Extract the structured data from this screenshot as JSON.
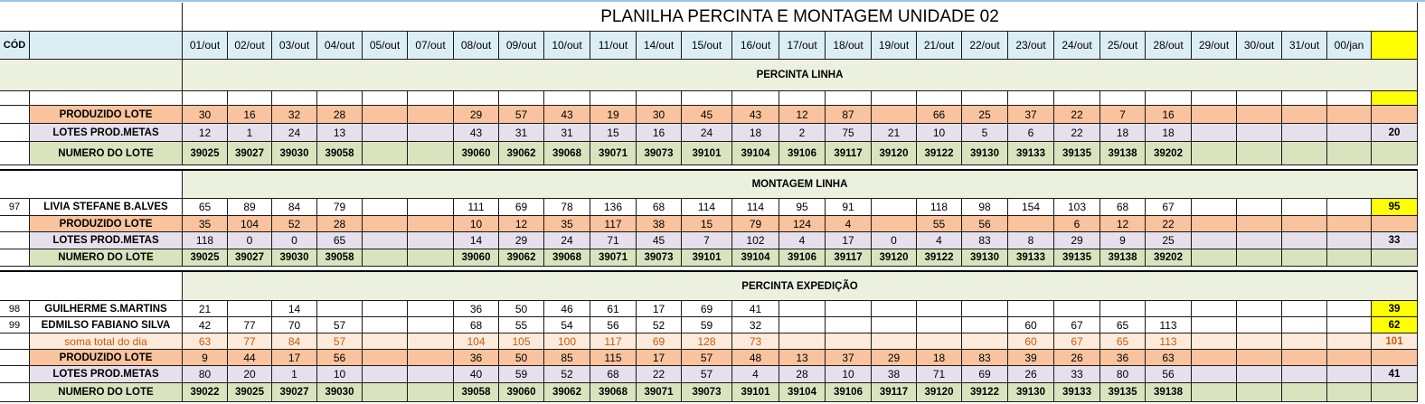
{
  "title": "PLANILHA PERCINTA E MONTAGEM UNIDADE 02",
  "code_header": "CÓD",
  "dates": [
    "01/out",
    "02/out",
    "03/out",
    "04/out",
    "05/out",
    "07/out",
    "08/out",
    "09/out",
    "10/out",
    "11/out",
    "14/out",
    "15/out",
    "16/out",
    "17/out",
    "18/out",
    "19/out",
    "21/out",
    "22/out",
    "23/out",
    "24/out",
    "25/out",
    "28/out",
    "29/out",
    "30/out",
    "31/out",
    "00/jan",
    ""
  ],
  "colors": {
    "header_blue": "#dbeef5",
    "band_green": "#ebf1de",
    "orange": "#f9c39d",
    "lilac": "#e5e0ec",
    "lot_green": "#d9e4bf",
    "peach": "#fdeada",
    "peach_text": "#c55a11",
    "total_yellow": "#ffff00"
  },
  "sections": [
    {
      "name": "PERCINTA LINHA",
      "rows": [
        {
          "style": "white",
          "code": "",
          "label": "",
          "cells": [
            "",
            "",
            "",
            "",
            "",
            "",
            "",
            "",
            "",
            "",
            "",
            "",
            "",
            "",
            "",
            "",
            "",
            "",
            "",
            "",
            "",
            "",
            "",
            "",
            "",
            "",
            ""
          ],
          "total_highlight": true
        },
        {
          "style": "orange",
          "code": "",
          "label": "PRODUZIDO LOTE",
          "cells": [
            "30",
            "16",
            "32",
            "28",
            "",
            "",
            "29",
            "57",
            "43",
            "19",
            "30",
            "45",
            "43",
            "12",
            "87",
            "",
            "66",
            "25",
            "37",
            "22",
            "7",
            "16",
            "",
            "",
            "",
            "",
            ""
          ]
        },
        {
          "style": "lilac",
          "code": "",
          "label": "LOTES PROD.METAS",
          "cells": [
            "12",
            "1",
            "24",
            "13",
            "",
            "",
            "43",
            "31",
            "31",
            "15",
            "16",
            "24",
            "18",
            "2",
            "75",
            "21",
            "10",
            "5",
            "6",
            "22",
            "18",
            "18",
            "",
            "",
            "",
            "",
            "20"
          ]
        },
        {
          "style": "green",
          "code": "",
          "label": "NUMERO DO LOTE",
          "bold": true,
          "cells": [
            "39025",
            "39027",
            "39030",
            "39058",
            "",
            "",
            "39060",
            "39062",
            "39068",
            "39071",
            "39073",
            "39101",
            "39104",
            "39106",
            "39117",
            "39120",
            "39122",
            "39130",
            "39133",
            "39135",
            "39138",
            "39202",
            "",
            "",
            "",
            "",
            ""
          ]
        }
      ]
    },
    {
      "name": "MONTAGEM LINHA",
      "rows": [
        {
          "style": "white",
          "code": "97",
          "label": "LIVIA STEFANE B.ALVES",
          "cells": [
            "65",
            "89",
            "84",
            "79",
            "",
            "",
            "111",
            "69",
            "78",
            "136",
            "68",
            "114",
            "114",
            "95",
            "91",
            "",
            "118",
            "98",
            "154",
            "103",
            "68",
            "67",
            "",
            "",
            "",
            "",
            "95"
          ],
          "total_highlight": true
        },
        {
          "style": "orange",
          "code": "",
          "label": "PRODUZIDO LOTE",
          "cells": [
            "35",
            "104",
            "52",
            "28",
            "",
            "",
            "10",
            "12",
            "35",
            "117",
            "38",
            "15",
            "79",
            "124",
            "4",
            "",
            "55",
            "56",
            "",
            "6",
            "12",
            "22",
            "",
            "",
            "",
            "",
            ""
          ]
        },
        {
          "style": "lilac",
          "code": "",
          "label": "LOTES PROD.METAS",
          "cells": [
            "118",
            "0",
            "0",
            "65",
            "",
            "",
            "14",
            "29",
            "24",
            "71",
            "45",
            "7",
            "102",
            "4",
            "17",
            "0",
            "4",
            "83",
            "8",
            "29",
            "9",
            "25",
            "",
            "",
            "",
            "",
            "33"
          ]
        },
        {
          "style": "green",
          "code": "",
          "label": "NUMERO DO LOTE",
          "bold": true,
          "cells": [
            "39025",
            "39027",
            "39030",
            "39058",
            "",
            "",
            "39060",
            "39062",
            "39068",
            "39071",
            "39073",
            "39101",
            "39104",
            "39106",
            "39117",
            "39120",
            "39122",
            "39130",
            "39133",
            "39135",
            "39138",
            "39202",
            "",
            "",
            "",
            "",
            ""
          ]
        }
      ]
    },
    {
      "name": "PERCINTA EXPEDIÇÃO",
      "rows": [
        {
          "style": "white",
          "code": "98",
          "label": "GUILHERME S.MARTINS",
          "cells": [
            "21",
            "",
            "14",
            "",
            "",
            "",
            "36",
            "50",
            "46",
            "61",
            "17",
            "69",
            "41",
            "",
            "",
            "",
            "",
            "",
            "",
            "",
            "",
            "",
            "",
            "",
            "",
            "",
            "39"
          ],
          "total_highlight": true
        },
        {
          "style": "white",
          "code": "99",
          "label": "EDMILSO FABIANO SILVA",
          "cells": [
            "42",
            "77",
            "70",
            "57",
            "",
            "",
            "68",
            "55",
            "54",
            "56",
            "52",
            "59",
            "32",
            "",
            "",
            "",
            "",
            "",
            "60",
            "67",
            "65",
            "113",
            "",
            "",
            "",
            "",
            "62"
          ],
          "total_highlight": true
        },
        {
          "style": "peach",
          "code": "",
          "label": "soma total  do dia",
          "cells": [
            "63",
            "77",
            "84",
            "57",
            "",
            "",
            "104",
            "105",
            "100",
            "117",
            "69",
            "128",
            "73",
            "",
            "",
            "",
            "",
            "",
            "60",
            "67",
            "65",
            "113",
            "",
            "",
            "",
            "",
            "101"
          ]
        },
        {
          "style": "orange",
          "code": "",
          "label": "PRODUZIDO LOTE",
          "cells": [
            "9",
            "44",
            "17",
            "56",
            "",
            "",
            "36",
            "50",
            "85",
            "115",
            "17",
            "57",
            "48",
            "13",
            "37",
            "29",
            "18",
            "83",
            "39",
            "26",
            "36",
            "63",
            "",
            "",
            "",
            "",
            ""
          ]
        },
        {
          "style": "lilac",
          "code": "",
          "label": "LOTES PROD.METAS",
          "cells": [
            "80",
            "20",
            "1",
            "10",
            "",
            "",
            "40",
            "59",
            "52",
            "68",
            "22",
            "57",
            "4",
            "28",
            "10",
            "38",
            "71",
            "69",
            "26",
            "33",
            "80",
            "56",
            "",
            "",
            "",
            "",
            "41"
          ]
        },
        {
          "style": "green",
          "code": "",
          "label": "NUMERO DO LOTE",
          "bold": true,
          "cells": [
            "39022",
            "39025",
            "39027",
            "39030",
            "",
            "",
            "39058",
            "39060",
            "39062",
            "39068",
            "39071",
            "39073",
            "39101",
            "39104",
            "39106",
            "39117",
            "39120",
            "39122",
            "39130",
            "39133",
            "39135",
            "39138",
            "",
            "",
            "",
            "",
            ""
          ]
        }
      ]
    }
  ]
}
